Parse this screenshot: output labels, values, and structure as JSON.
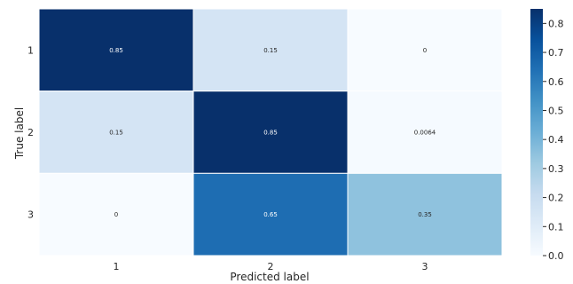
{
  "chart_data": {
    "type": "heatmap",
    "title": "",
    "xlabel": "Predicted label",
    "ylabel": "True label",
    "x_categories": [
      "1",
      "2",
      "3"
    ],
    "y_categories": [
      "1",
      "2",
      "3"
    ],
    "values": [
      [
        0.85,
        0.15,
        0
      ],
      [
        0.15,
        0.85,
        0.0064
      ],
      [
        0,
        0.65,
        0.35
      ]
    ],
    "cell_labels": [
      [
        "0.85",
        "0.15",
        "0"
      ],
      [
        "0.15",
        "0.85",
        "0.0064"
      ],
      [
        "0",
        "0.65",
        "0.35"
      ]
    ],
    "colorbar": {
      "colormap": "Blues",
      "range": [
        0,
        0.85
      ],
      "ticks": [
        0.0,
        0.1,
        0.2,
        0.3,
        0.4,
        0.5,
        0.6,
        0.7,
        0.8
      ],
      "tick_labels": [
        "0.0",
        "0.1",
        "0.2",
        "0.3",
        "0.4",
        "0.5",
        "0.6",
        "0.7",
        "0.8"
      ],
      "placement": "right"
    },
    "grid": false
  }
}
